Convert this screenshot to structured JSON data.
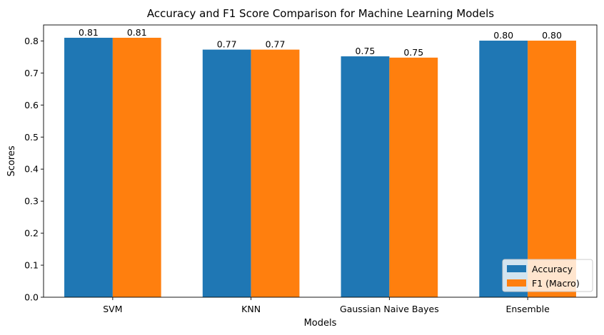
{
  "chart_data": {
    "type": "bar",
    "title": "Accuracy and F1 Score Comparison for Machine Learning Models",
    "xlabel": "Models",
    "ylabel": "Scores",
    "categories": [
      "SVM",
      "KNN",
      "Gaussian Naive Bayes",
      "Ensemble"
    ],
    "series": [
      {
        "name": "Accuracy",
        "color": "#1f77b4",
        "values": [
          0.81,
          0.773,
          0.752,
          0.801
        ],
        "labels": [
          "0.81",
          "0.77",
          "0.75",
          "0.80"
        ]
      },
      {
        "name": "F1 (Macro)",
        "color": "#ff7f0e",
        "values": [
          0.81,
          0.773,
          0.748,
          0.801
        ],
        "labels": [
          "0.81",
          "0.77",
          "0.75",
          "0.80"
        ]
      }
    ],
    "ylim": [
      0,
      0.85
    ],
    "yticks": [
      0.0,
      0.1,
      0.2,
      0.3,
      0.4,
      0.5,
      0.6,
      0.7,
      0.8
    ],
    "ytick_labels": [
      "0.0",
      "0.1",
      "0.2",
      "0.3",
      "0.4",
      "0.5",
      "0.6",
      "0.7",
      "0.8"
    ],
    "grid": false,
    "legend_position": "lower-right"
  }
}
